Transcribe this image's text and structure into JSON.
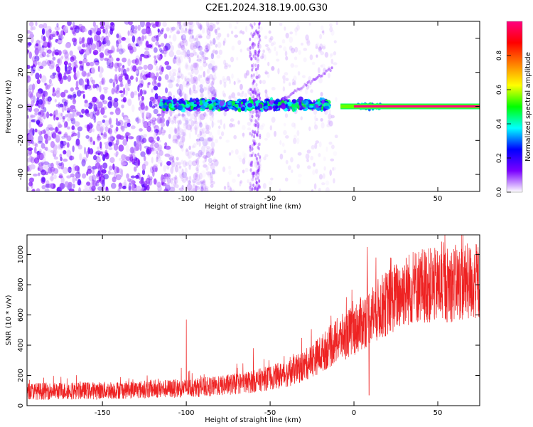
{
  "title": "C2E1.2024.318.19.00.G30",
  "chart_data": [
    {
      "type": "heatmap",
      "name": "spectrogram",
      "xlabel": "Height of straight line (km)",
      "ylabel": "Frequency (Hz)",
      "xlim": [
        -195,
        75
      ],
      "ylim": [
        -50,
        50
      ],
      "xticks": [
        -150,
        -100,
        -50,
        0,
        50
      ],
      "yticks": [
        -40,
        -20,
        0,
        20,
        40
      ],
      "colorbar": {
        "label": "Normalized spectral amplitude",
        "range": [
          0,
          1
        ],
        "ticks": [
          0.0,
          0.2,
          0.4,
          0.6,
          0.8
        ],
        "tick_labels": [
          "0.0",
          "0.2",
          "0.4",
          "0.6",
          "0.8"
        ],
        "stops": [
          "#ffffff",
          "#7a00ff",
          "#0000ff",
          "#00ffff",
          "#00ff00",
          "#ffff00",
          "#ff8000",
          "#ff0000",
          "#ff0080"
        ]
      },
      "features": {
        "noise_region_x": [
          -195,
          -100
        ],
        "noise_amplitude": 0.15,
        "main_band_x": [
          -115,
          -15
        ],
        "main_band_amplitude": 0.4,
        "carrier_x": [
          0,
          75
        ],
        "carrier_amplitude": 1.0,
        "carrier_freq": 0
      }
    },
    {
      "type": "line",
      "name": "snr",
      "xlabel": "Height of straight line (km)",
      "ylabel": "SNR (10 * v/v)",
      "xlim": [
        -195,
        75
      ],
      "ylim": [
        0,
        1130
      ],
      "xticks": [
        -150,
        -100,
        -50,
        0,
        50
      ],
      "yticks": [
        0,
        200,
        400,
        600,
        800,
        1000
      ],
      "color": "#ee2222",
      "trend_x": [
        -195,
        -150,
        -100,
        -80,
        -60,
        -40,
        -30,
        -20,
        -10,
        0,
        10,
        20,
        30,
        40,
        50,
        60,
        75
      ],
      "trend_y": [
        95,
        100,
        115,
        130,
        160,
        210,
        260,
        340,
        430,
        500,
        600,
        680,
        760,
        800,
        790,
        810,
        820
      ],
      "spikes": [
        {
          "x": -100,
          "y": 570
        },
        {
          "x": -60,
          "y": 380
        },
        {
          "x": 8,
          "y": 1050
        },
        {
          "x": 9,
          "y": 70
        },
        {
          "x": 65,
          "y": 1130
        }
      ]
    }
  ]
}
